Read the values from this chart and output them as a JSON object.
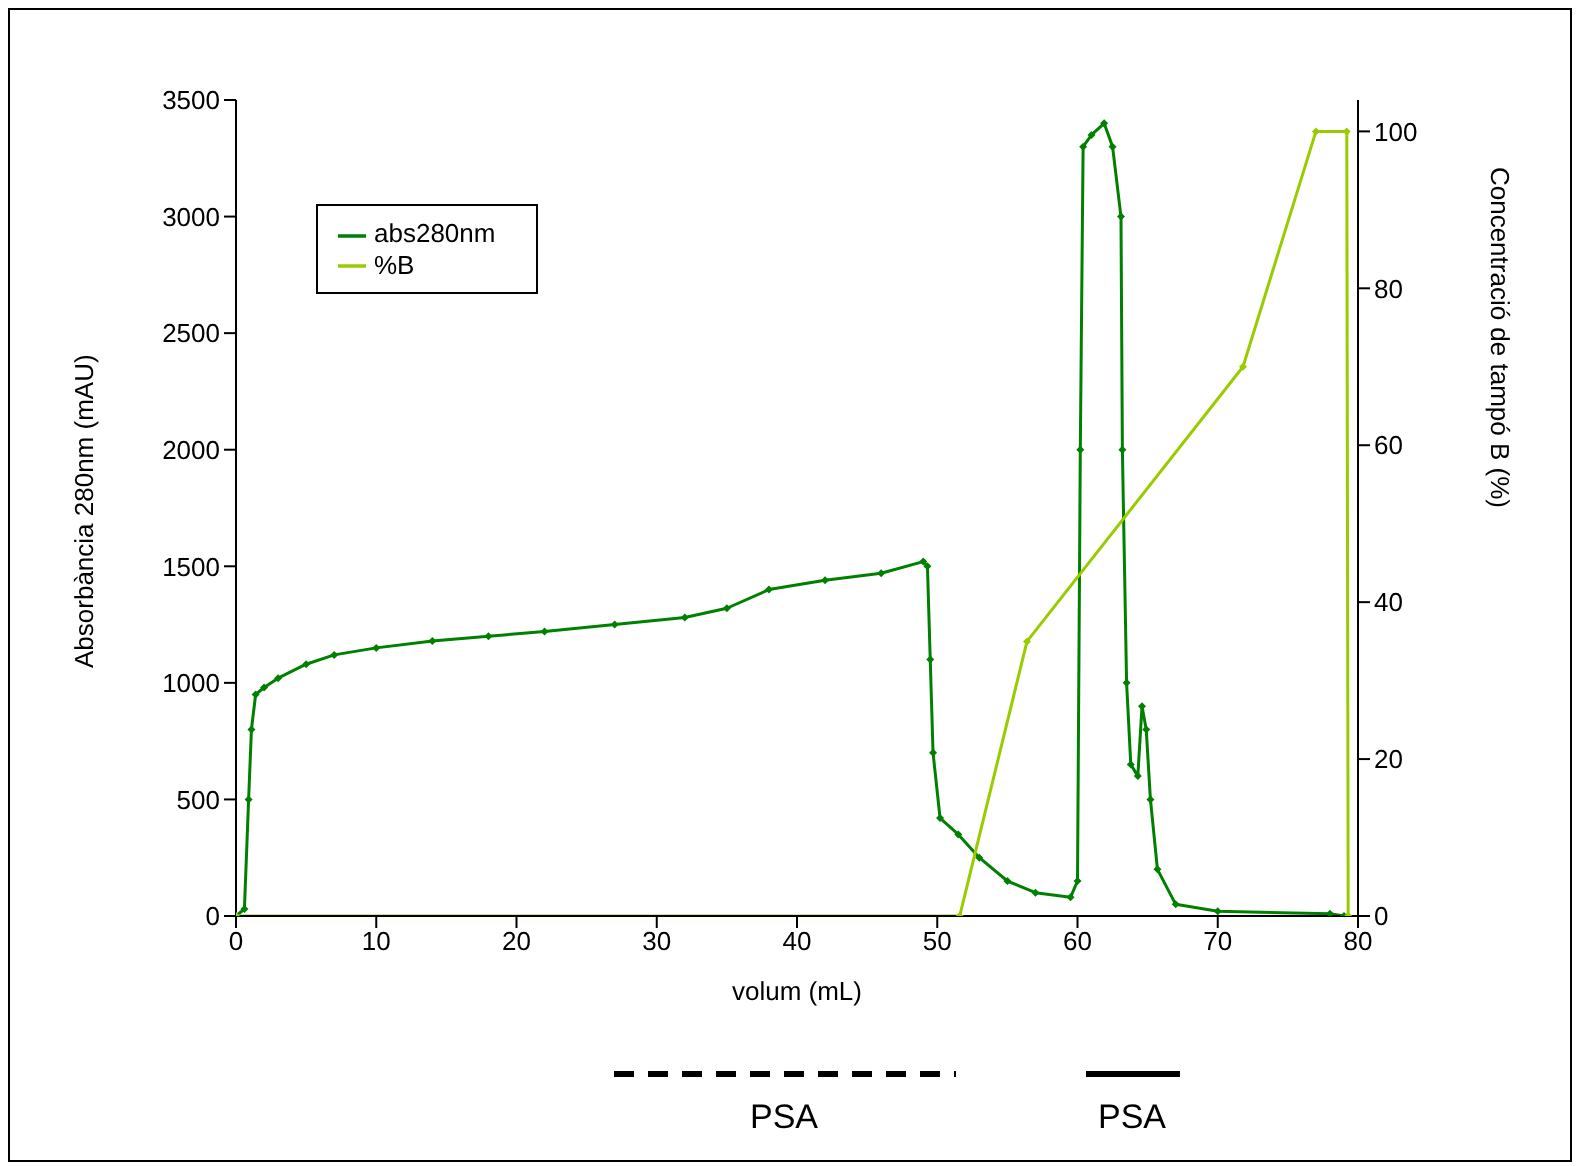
{
  "chart_data": {
    "type": "line",
    "xlabel": "volum (mL)",
    "ylabel": "Absorbància 280nm (mAU)",
    "y2label": "Concentració de tampó B (%)",
    "xlim": [
      0,
      80
    ],
    "xticks": [
      0,
      10,
      20,
      30,
      40,
      50,
      60,
      70,
      80
    ],
    "ylim": [
      0,
      3500
    ],
    "yticks": [
      0,
      500,
      1000,
      1500,
      2000,
      2500,
      3000,
      3500
    ],
    "y2lim": [
      0,
      104
    ],
    "y2ticks": [
      0,
      20,
      40,
      60,
      80,
      100
    ],
    "legend": "top left",
    "marker": "diamond",
    "grid": false,
    "series": [
      {
        "name": "abs280nm",
        "color": "#008000",
        "x": [
          0,
          0.6,
          0.9,
          1.1,
          1.4,
          2,
          3,
          5,
          7,
          10,
          14,
          18,
          22,
          27,
          32,
          35,
          38,
          42,
          46,
          49,
          49.3,
          49.5,
          49.7,
          50.2,
          51.5,
          53,
          55,
          57,
          59.5,
          60,
          60.2,
          60.4,
          61,
          61.9,
          62.5,
          63.1,
          63.2,
          63.5,
          63.8,
          64.3,
          64.6,
          64.9,
          65.2,
          65.7,
          67,
          70,
          78,
          79
        ],
        "values": [
          0,
          30,
          500,
          800,
          950,
          980,
          1020,
          1080,
          1120,
          1150,
          1180,
          1200,
          1220,
          1250,
          1280,
          1320,
          1400,
          1440,
          1470,
          1520,
          1500,
          1100,
          700,
          420,
          350,
          250,
          150,
          100,
          80,
          150,
          2000,
          3300,
          3350,
          3400,
          3300,
          3000,
          2000,
          1000,
          650,
          600,
          900,
          800,
          500,
          200,
          50,
          20,
          10,
          0
        ]
      },
      {
        "name": "%B",
        "color": "#99cc00",
        "axis": "y2",
        "x": [
          0,
          51.6,
          56.4,
          71.8,
          77,
          79.2,
          79.3
        ],
        "values": [
          0,
          0,
          35,
          70,
          100,
          100,
          0
        ]
      }
    ],
    "annotations": [
      "PSA",
      "PSA"
    ]
  }
}
